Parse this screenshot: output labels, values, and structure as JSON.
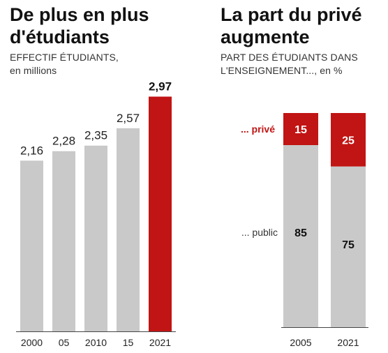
{
  "left": {
    "title_line1": "De plus en plus",
    "title_line2": "d'étudiants",
    "subtitle_line1": "EFFECTIF ÉTUDIANTS,",
    "subtitle_line2": "en millions"
  },
  "right": {
    "title_line1": "La part du privé",
    "title_line2": "augmente",
    "subtitle_line1": "PART DES ÉTUDIANTS DANS",
    "subtitle_line2": "L'ENSEIGNEMENT..., en %"
  },
  "colors": {
    "grey": "#c9c9c9",
    "red": "#c11414"
  },
  "chart_data": [
    {
      "type": "bar",
      "title": "De plus en plus d'étudiants",
      "subtitle": "EFFECTIF ÉTUDIANTS, en millions",
      "categories": [
        "2000",
        "05",
        "2010",
        "15",
        "2021"
      ],
      "values": [
        2.16,
        2.28,
        2.35,
        2.57,
        2.97
      ],
      "value_labels": [
        "2,16",
        "2,28",
        "2,35",
        "2,57",
        "2,97"
      ],
      "highlight_index": 4,
      "ylim": [
        0,
        3.3
      ]
    },
    {
      "type": "bar",
      "stacked": true,
      "title": "La part du privé augmente",
      "subtitle": "PART DES ÉTUDIANTS DANS L'ENSEIGNEMENT..., en %",
      "categories": [
        "2005",
        "2021"
      ],
      "series": [
        {
          "name": "... privé",
          "values": [
            15,
            25
          ]
        },
        {
          "name": "... public",
          "values": [
            85,
            75
          ]
        }
      ],
      "ylim": [
        0,
        100
      ]
    }
  ]
}
